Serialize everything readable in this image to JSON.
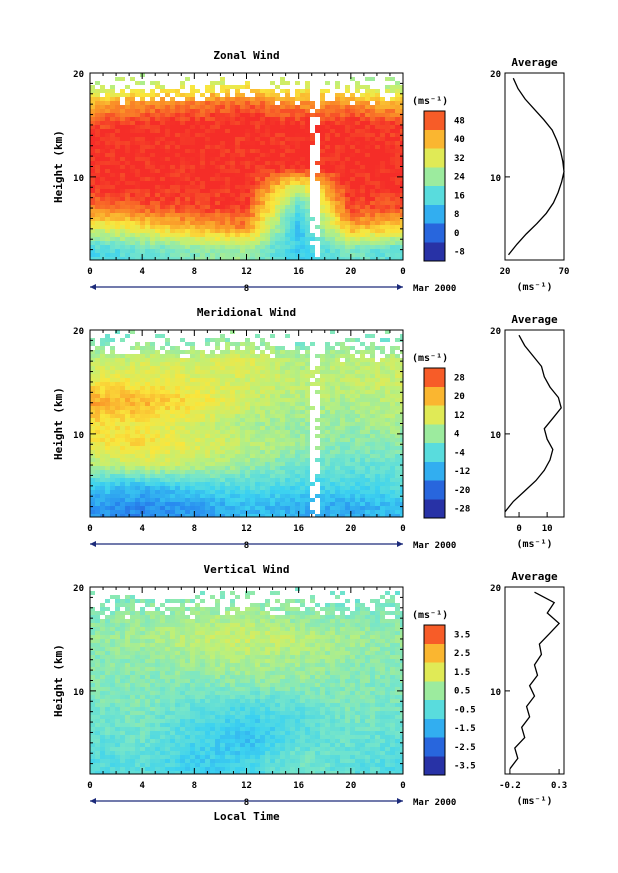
{
  "chart_data": [
    {
      "type": "heatmap",
      "title": "Zonal Wind",
      "ylabel": "Height (km)",
      "xlabel": "",
      "x_ticks": [
        "0",
        "4",
        "8",
        "12",
        "16",
        "20",
        "0"
      ],
      "y_ticks": [
        "20",
        "10"
      ],
      "xlim": [
        0,
        24
      ],
      "ylim": [
        2,
        20
      ],
      "date_bar": {
        "label": "8",
        "right_label": "Mar 2000"
      },
      "colorbar": {
        "unit": "(ms⁻¹)",
        "ticks": [
          "48",
          "40",
          "32",
          "24",
          "16",
          "8",
          "0",
          "-8"
        ],
        "range": [
          -12,
          52
        ]
      },
      "field": {
        "heights_km": [
          3,
          5,
          7,
          9,
          11,
          13,
          15,
          17,
          19
        ],
        "times_h": [
          0,
          4,
          8,
          12,
          16,
          20,
          24
        ],
        "values_ms": [
          [
            14,
            18,
            22,
            24,
            12,
            20,
            16
          ],
          [
            30,
            34,
            40,
            44,
            10,
            40,
            36
          ],
          [
            46,
            48,
            50,
            50,
            16,
            50,
            48
          ],
          [
            52,
            52,
            52,
            52,
            30,
            52,
            52
          ],
          [
            52,
            52,
            52,
            52,
            52,
            52,
            52
          ],
          [
            52,
            52,
            52,
            52,
            52,
            52,
            52
          ],
          [
            50,
            52,
            52,
            52,
            52,
            52,
            50
          ],
          [
            40,
            44,
            46,
            48,
            44,
            44,
            40
          ],
          [
            26,
            28,
            30,
            32,
            30,
            28,
            24
          ]
        ]
      },
      "average": {
        "title": "Average",
        "x_ticks": [
          "20",
          "70"
        ],
        "xlim": [
          20,
          70
        ],
        "unit": "(ms⁻¹)",
        "heights_km": [
          2.5,
          3.5,
          4.5,
          5.5,
          6.5,
          7.5,
          8.5,
          9.5,
          10.5,
          11.5,
          12.5,
          13.5,
          14.5,
          15.5,
          16.5,
          17.5,
          18.5,
          19.5
        ],
        "values_ms": [
          23,
          30,
          38,
          47,
          55,
          61,
          65,
          68,
          70,
          69,
          67,
          64,
          60,
          53,
          45,
          37,
          31,
          27
        ]
      }
    },
    {
      "type": "heatmap",
      "title": "Meridional Wind",
      "ylabel": "Height (km)",
      "xlabel": "",
      "x_ticks": [
        "0",
        "4",
        "8",
        "12",
        "16",
        "20",
        "0"
      ],
      "y_ticks": [
        "20",
        "10"
      ],
      "xlim": [
        0,
        24
      ],
      "ylim": [
        2,
        20
      ],
      "date_bar": {
        "label": "8",
        "right_label": "Mar 2000"
      },
      "colorbar": {
        "unit": "(ms⁻¹)",
        "ticks": [
          "28",
          "20",
          "12",
          "4",
          "-4",
          "-12",
          "-20",
          "-28"
        ],
        "range": [
          -32,
          32
        ]
      },
      "field": {
        "heights_km": [
          3,
          5,
          7,
          9,
          11,
          13,
          15,
          17,
          19
        ],
        "times_h": [
          0,
          4,
          8,
          12,
          16,
          20,
          24
        ],
        "values_ms": [
          [
            -14,
            -16,
            -14,
            -10,
            -12,
            -12,
            -10
          ],
          [
            -8,
            -10,
            -6,
            -4,
            -6,
            -6,
            -4
          ],
          [
            6,
            10,
            8,
            4,
            0,
            -2,
            -2
          ],
          [
            14,
            16,
            12,
            8,
            4,
            2,
            2
          ],
          [
            16,
            14,
            10,
            6,
            4,
            4,
            6
          ],
          [
            22,
            20,
            16,
            10,
            6,
            6,
            8
          ],
          [
            14,
            14,
            12,
            10,
            8,
            8,
            10
          ],
          [
            8,
            10,
            10,
            12,
            6,
            8,
            8
          ],
          [
            0,
            2,
            2,
            4,
            0,
            2,
            0
          ]
        ]
      },
      "average": {
        "title": "Average",
        "x_ticks": [
          "0",
          "10"
        ],
        "xlim": [
          -5,
          16
        ],
        "unit": "(ms⁻¹)",
        "heights_km": [
          2.5,
          3.5,
          4.5,
          5.5,
          6.5,
          7.5,
          8.5,
          9.5,
          10.5,
          11.5,
          12.5,
          13.5,
          14.5,
          15.5,
          16.5,
          17.5,
          18.5,
          19.5
        ],
        "values_ms": [
          -5,
          -2,
          2,
          6,
          9,
          11,
          12,
          10,
          9,
          12,
          15,
          14,
          11,
          9,
          8,
          5,
          2,
          0
        ]
      }
    },
    {
      "type": "heatmap",
      "title": "Vertical Wind",
      "ylabel": "Height (km)",
      "xlabel": "Local Time",
      "x_ticks": [
        "0",
        "4",
        "8",
        "12",
        "16",
        "20",
        "0"
      ],
      "y_ticks": [
        "20",
        "10"
      ],
      "xlim": [
        0,
        24
      ],
      "ylim": [
        2,
        20
      ],
      "date_bar": {
        "label": "8",
        "right_label": "Mar 2000"
      },
      "colorbar": {
        "unit": "(ms⁻¹)",
        "ticks": [
          "3.5",
          "2.5",
          "1.5",
          "0.5",
          "-0.5",
          "-1.5",
          "-2.5",
          "-3.5"
        ],
        "range": [
          -4,
          4
        ]
      },
      "field": {
        "heights_km": [
          3,
          5,
          7,
          9,
          11,
          13,
          15,
          17,
          19
        ],
        "times_h": [
          0,
          4,
          8,
          12,
          16,
          20,
          24
        ],
        "values_ms": [
          [
            -0.6,
            -0.4,
            -1.0,
            -0.8,
            0.0,
            -0.4,
            -0.6
          ],
          [
            -0.4,
            -0.2,
            -0.8,
            -1.2,
            -0.4,
            -0.2,
            -0.4
          ],
          [
            -0.2,
            0.0,
            -0.6,
            -1.0,
            -0.6,
            0.0,
            -0.2
          ],
          [
            0.0,
            0.2,
            -0.2,
            -0.4,
            -0.2,
            0.2,
            0.0
          ],
          [
            0.2,
            0.2,
            0.2,
            0.4,
            0.4,
            0.2,
            0.2
          ],
          [
            0.2,
            0.4,
            0.6,
            0.8,
            0.6,
            0.4,
            0.2
          ],
          [
            0.4,
            0.6,
            1.0,
            1.2,
            1.0,
            0.6,
            0.4
          ],
          [
            0.2,
            0.4,
            0.6,
            0.8,
            0.4,
            0.2,
            0.2
          ],
          [
            0.0,
            0.2,
            0.2,
            0.2,
            0.2,
            0.0,
            0.0
          ]
        ]
      },
      "average": {
        "title": "Average",
        "x_ticks": [
          "-0.2",
          "0.3"
        ],
        "xlim": [
          -0.25,
          0.35
        ],
        "unit": "(ms⁻¹)",
        "heights_km": [
          2.5,
          3.5,
          4.5,
          5.5,
          6.5,
          7.5,
          8.5,
          9.5,
          10.5,
          11.5,
          12.5,
          13.5,
          14.5,
          15.5,
          16.5,
          17.5,
          18.5,
          19.5
        ],
        "values_ms": [
          -0.2,
          -0.12,
          -0.15,
          -0.05,
          -0.08,
          0.0,
          -0.03,
          0.05,
          0.0,
          0.08,
          0.05,
          0.12,
          0.1,
          0.2,
          0.3,
          0.18,
          0.25,
          0.05
        ]
      }
    }
  ]
}
